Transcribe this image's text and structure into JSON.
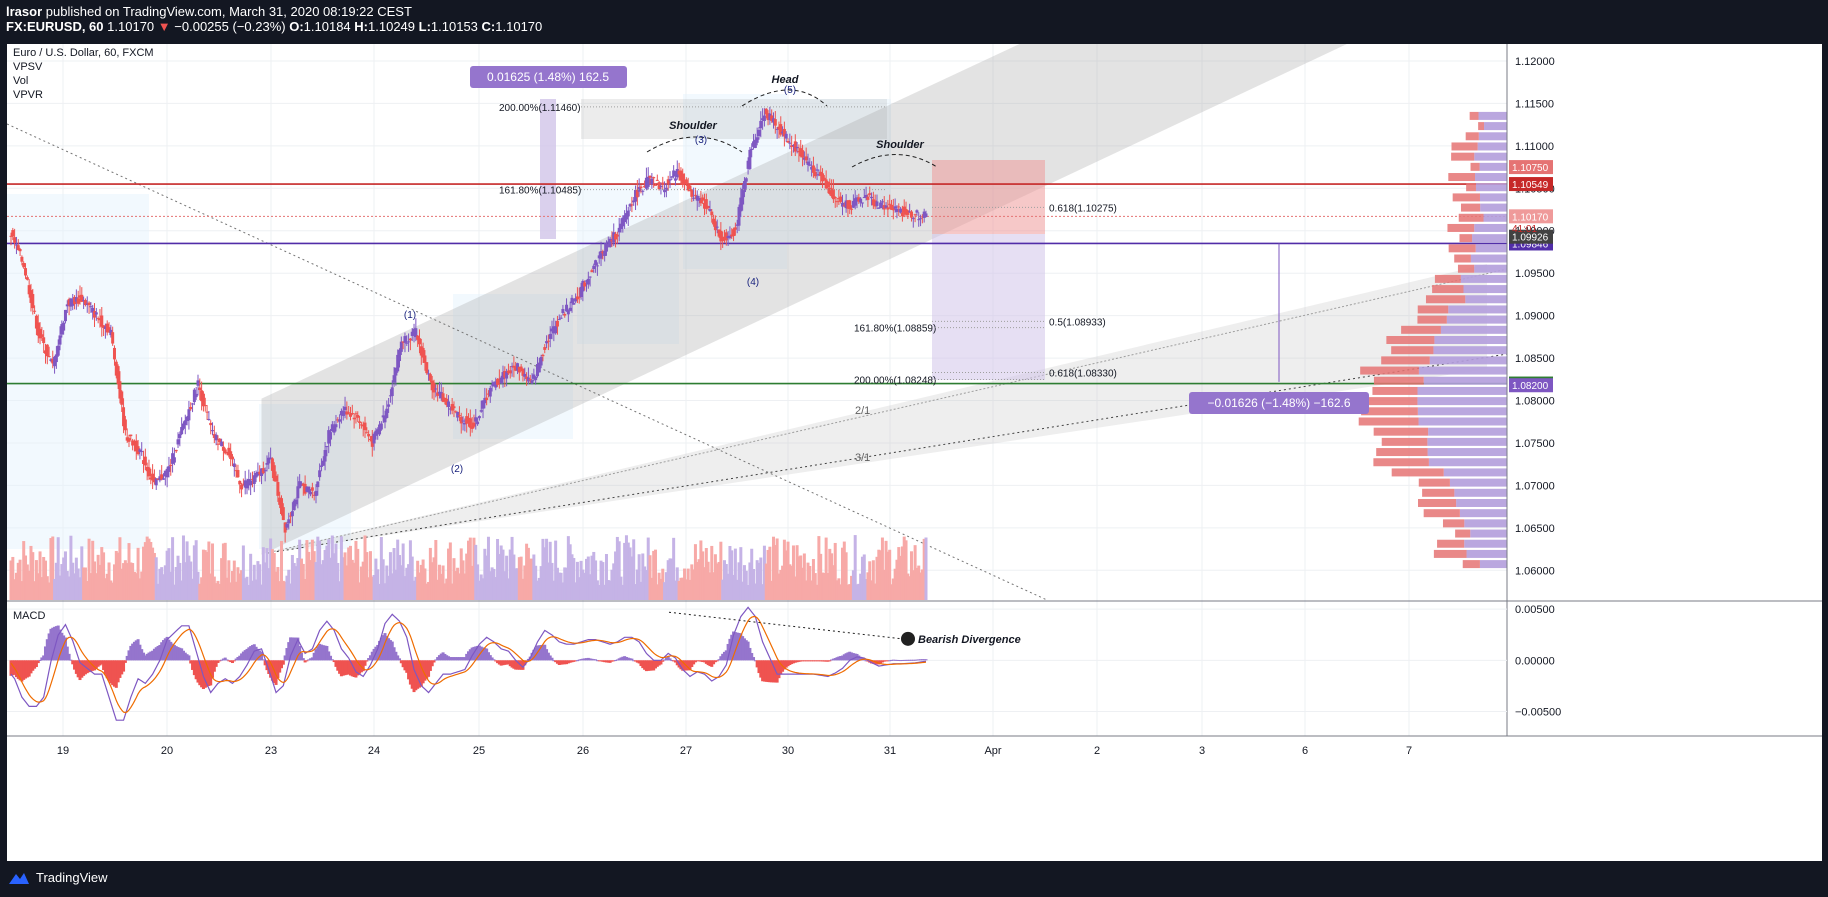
{
  "header": {
    "publisher": "lrasor",
    "published_text": "published on TradingView.com, March 31, 2020 08:19:22 CEST",
    "symbol": "FX:EURUSD, 60",
    "last": "1.10170",
    "change": "−0.00255 (−0.23%)",
    "open_label": "O:",
    "open": "1.10184",
    "high_label": "H:",
    "high": "1.10249",
    "low_label": "L:",
    "low": "1.10153",
    "close_label": "C:",
    "close": "1.10170"
  },
  "legend": {
    "title": "Euro / U.S. Dollar, 60, FXCM",
    "indicators": [
      "VPSV",
      "Vol",
      "VPVR"
    ]
  },
  "macd_label": "MACD",
  "footer": {
    "brand": "TradingView"
  },
  "colors": {
    "up": "#7e57c2",
    "down": "#ef5350",
    "up_vol": "#c5b3e6",
    "down_vol": "#f7a9a7",
    "green_line": "#2e7d32",
    "red_line": "#c62828",
    "purple_line": "#512da8",
    "dark_bg": "#131722"
  },
  "chart_data": {
    "type": "candlestick",
    "symbol": "EURUSD",
    "interval": "60",
    "price_axis": {
      "range": [
        1.0565,
        1.122
      ],
      "ticks": [
        "1.06000",
        "1.06500",
        "1.07000",
        "1.07500",
        "1.08000",
        "1.08500",
        "1.09000",
        "1.09500",
        "1.10000",
        "1.10500",
        "1.11000",
        "1.11500",
        "1.12000"
      ]
    },
    "macd_axis": {
      "range": [
        -0.0072,
        0.0057
      ],
      "ticks": [
        "0.00500",
        "0.00000",
        "−0.00500"
      ]
    },
    "time_axis": {
      "labels": [
        "19",
        "20",
        "23",
        "24",
        "25",
        "26",
        "27",
        "30",
        "31",
        "Apr",
        "2",
        "3",
        "6",
        "7"
      ]
    },
    "price_path": [
      [
        0,
        1.1
      ],
      [
        8,
        1.096
      ],
      [
        16,
        1.088
      ],
      [
        24,
        1.084
      ],
      [
        32,
        1.0915
      ],
      [
        40,
        1.092
      ],
      [
        48,
        1.09
      ],
      [
        56,
        1.088
      ],
      [
        64,
        1.076
      ],
      [
        72,
        1.074
      ],
      [
        80,
        1.07
      ],
      [
        88,
        1.072
      ],
      [
        96,
        1.077
      ],
      [
        104,
        1.082
      ],
      [
        112,
        1.076
      ],
      [
        120,
        1.074
      ],
      [
        128,
        1.07
      ],
      [
        136,
        1.071
      ],
      [
        144,
        1.073
      ],
      [
        152,
        1.065
      ],
      [
        160,
        1.07
      ],
      [
        168,
        1.069
      ],
      [
        176,
        1.076
      ],
      [
        184,
        1.079
      ],
      [
        192,
        1.078
      ],
      [
        200,
        1.075
      ],
      [
        208,
        1.079
      ],
      [
        216,
        1.087
      ],
      [
        224,
        1.088
      ],
      [
        232,
        1.082
      ],
      [
        240,
        1.08
      ],
      [
        248,
        1.078
      ],
      [
        256,
        1.077
      ],
      [
        264,
        1.081
      ],
      [
        272,
        1.083
      ],
      [
        280,
        1.084
      ],
      [
        288,
        1.082
      ],
      [
        296,
        1.087
      ],
      [
        304,
        1.09
      ],
      [
        312,
        1.092
      ],
      [
        320,
        1.095
      ],
      [
        328,
        1.098
      ],
      [
        336,
        1.1
      ],
      [
        344,
        1.104
      ],
      [
        352,
        1.106
      ],
      [
        360,
        1.105
      ],
      [
        368,
        1.107
      ],
      [
        376,
        1.104
      ],
      [
        384,
        1.103
      ],
      [
        392,
        1.099
      ],
      [
        400,
        1.1
      ],
      [
        408,
        1.109
      ],
      [
        416,
        1.114
      ],
      [
        424,
        1.112
      ],
      [
        432,
        1.11
      ],
      [
        440,
        1.108
      ],
      [
        448,
        1.106
      ],
      [
        456,
        1.1035
      ],
      [
        464,
        1.103
      ],
      [
        472,
        1.104
      ],
      [
        480,
        1.103
      ],
      [
        488,
        1.1025
      ],
      [
        496,
        1.102
      ],
      [
        504,
        1.1017
      ]
    ],
    "levels": [
      {
        "name": "resistance",
        "value": 1.1055,
        "tag": "1.10549",
        "color": "#c62828"
      },
      {
        "name": "last-price",
        "value": 1.1017,
        "tag": "1.10170",
        "color": "#e57373"
      },
      {
        "name": "neckline",
        "value": 1.0985,
        "tag": "1.09846",
        "color": "#512da8"
      },
      {
        "name": "target",
        "value": 1.082,
        "tag": "1.08200",
        "color": "#2e7d32"
      }
    ],
    "extra_price_tags": [
      "1.10750",
      "1.09926",
      "1.08200"
    ],
    "countdown_tag": "41:01",
    "patterns": {
      "head_shoulders": [
        "Shoulder",
        "Head",
        "Shoulder"
      ],
      "waves": [
        "(1)",
        "(2)",
        "(3)",
        "(4)",
        "(5)"
      ]
    },
    "measure_up": "0.01625 (1.48%) 162.5",
    "measure_down": "−0.01626 (−1.48%) −162.6",
    "fib_labels": [
      {
        "text": "200.00%(1.11460)",
        "value": 1.1146
      },
      {
        "text": "161.80%(1.10485)",
        "value": 1.10485
      },
      {
        "text": "0.618(1.10275)",
        "value": 1.10275
      },
      {
        "text": "161.80%(1.08859)",
        "value": 1.08859
      },
      {
        "text": "0.5(1.08933)",
        "value": 1.08933
      },
      {
        "text": "200.00%(1.08248)",
        "value": 1.08248
      },
      {
        "text": "0.618(1.08330)",
        "value": 1.0833
      }
    ],
    "fan_labels": [
      "2/1",
      "3/1"
    ],
    "macd_note": "Bearish Divergence"
  }
}
